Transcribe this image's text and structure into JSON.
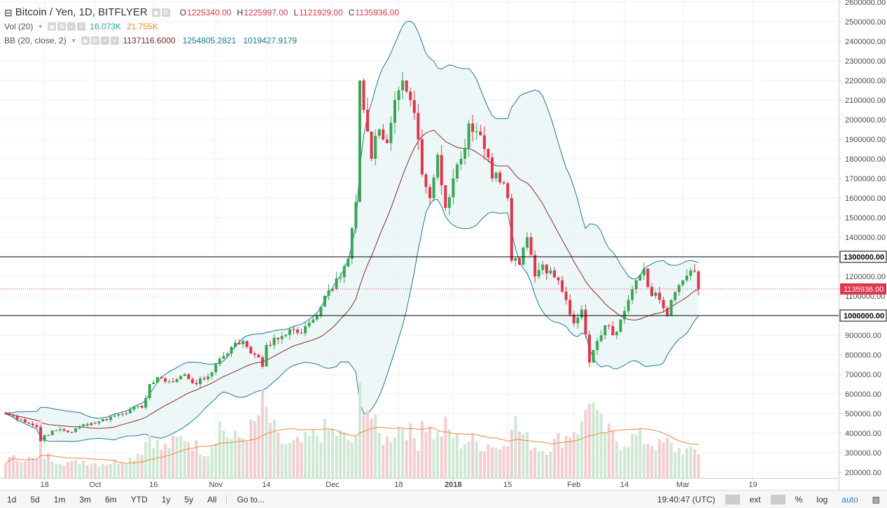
{
  "legend": {
    "symbol": "Bitcoin / Yen, 1D, BITFLYER",
    "ohlc": {
      "o_label": "O",
      "o": "1225340.00",
      "h_label": "H",
      "h": "1225997.00",
      "l_label": "L",
      "l": "1121929.00",
      "c_label": "C",
      "c": "1135936.00"
    },
    "vol_label": "Vol (20)",
    "vol_value": "16.073K",
    "vol_ma": "21.755K",
    "bb_label": "BB (20, close, 2)",
    "bb_basis": "1137116.6000",
    "bb_upper": "1254805.2821",
    "bb_lower": "1019427.9179"
  },
  "toolbar": {
    "timeframes": [
      "1d",
      "5d",
      "1m",
      "3m",
      "6m",
      "YTD",
      "1y",
      "5y",
      "All"
    ],
    "goto": "Go to...",
    "time": "19:40:47 (UTC)",
    "ext": "ext",
    "percent": "%",
    "log": "log",
    "auto": "auto"
  },
  "colors": {
    "up": "#3aa654",
    "down": "#e0364c",
    "bb_band": "#1c7d8c",
    "bb_basis": "#8b2a2a",
    "vol_ma": "#f08a35",
    "level": "#000000",
    "last_price": "#e0364c"
  },
  "chart_data": {
    "type": "candlestick",
    "price_axis": {
      "min": 200000,
      "max": 2600000,
      "step": 100000
    },
    "price_tick_labels": [
      "200000.00",
      "300000.00",
      "400000.00",
      "500000.00",
      "600000.00",
      "700000.00",
      "800000.00",
      "900000.00",
      "1000000.00",
      "1100000.00",
      "1200000.00",
      "1300000.00",
      "1400000.00",
      "1500000.00",
      "1600000.00",
      "1700000.00",
      "1800000.00",
      "1900000.00",
      "2000000.00",
      "2100000.00",
      "2200000.00",
      "2300000.00",
      "2400000.00",
      "2500000.00",
      "2600000.00"
    ],
    "x_tick_labels": [
      {
        "label": "18",
        "index": 10
      },
      {
        "label": "Oct",
        "index": 23
      },
      {
        "label": "16",
        "index": 38
      },
      {
        "label": "Nov",
        "index": 54
      },
      {
        "label": "14",
        "index": 67
      },
      {
        "label": "Dec",
        "index": 84
      },
      {
        "label": "18",
        "index": 101
      },
      {
        "label": "2018",
        "index": 115
      },
      {
        "label": "15",
        "index": 129
      },
      {
        "label": "Feb",
        "index": 146
      },
      {
        "label": "14",
        "index": 159
      },
      {
        "label": "Mar",
        "index": 174
      },
      {
        "label": "19",
        "index": 192
      }
    ],
    "bold_x_labels": [
      "2018"
    ],
    "horizontal_levels": [
      {
        "value": 1300000,
        "label": "1300000.00"
      },
      {
        "value": 1000000,
        "label": "1000000.00"
      }
    ],
    "last_price": {
      "value": 1135936,
      "label": "1135936.00"
    },
    "anchors": [
      {
        "i": 0,
        "c": 500000,
        "v": 55
      },
      {
        "i": 4,
        "c": 470000,
        "v": 65
      },
      {
        "i": 8,
        "c": 430000,
        "v": 55
      },
      {
        "i": 9,
        "c": 360000,
        "v": 155
      },
      {
        "i": 10,
        "c": 390000,
        "v": 70
      },
      {
        "i": 14,
        "c": 420000,
        "v": 55
      },
      {
        "i": 17,
        "c": 405000,
        "v": 45
      },
      {
        "i": 20,
        "c": 445000,
        "v": 55
      },
      {
        "i": 24,
        "c": 460000,
        "v": 45
      },
      {
        "i": 28,
        "c": 490000,
        "v": 50
      },
      {
        "i": 32,
        "c": 520000,
        "v": 60
      },
      {
        "i": 35,
        "c": 530000,
        "v": 90
      },
      {
        "i": 37,
        "c": 650000,
        "v": 140
      },
      {
        "i": 40,
        "c": 680000,
        "v": 90
      },
      {
        "i": 43,
        "c": 660000,
        "v": 110
      },
      {
        "i": 46,
        "c": 700000,
        "v": 130
      },
      {
        "i": 49,
        "c": 650000,
        "v": 100
      },
      {
        "i": 52,
        "c": 690000,
        "v": 80
      },
      {
        "i": 55,
        "c": 780000,
        "v": 170
      },
      {
        "i": 58,
        "c": 840000,
        "v": 120
      },
      {
        "i": 61,
        "c": 870000,
        "v": 130
      },
      {
        "i": 64,
        "c": 800000,
        "v": 165
      },
      {
        "i": 66,
        "c": 740000,
        "v": 230
      },
      {
        "i": 67,
        "c": 850000,
        "v": 205
      },
      {
        "i": 70,
        "c": 880000,
        "v": 120
      },
      {
        "i": 73,
        "c": 930000,
        "v": 100
      },
      {
        "i": 76,
        "c": 910000,
        "v": 110
      },
      {
        "i": 79,
        "c": 980000,
        "v": 130
      },
      {
        "i": 82,
        "c": 1100000,
        "v": 150
      },
      {
        "i": 85,
        "c": 1190000,
        "v": 140
      },
      {
        "i": 88,
        "c": 1290000,
        "v": 120
      },
      {
        "i": 90,
        "c": 1580000,
        "v": 110
      },
      {
        "i": 91,
        "c": 2200000,
        "v": 270
      },
      {
        "i": 92,
        "c": 2050000,
        "v": 260
      },
      {
        "i": 94,
        "c": 1800000,
        "v": 190
      },
      {
        "i": 96,
        "c": 1950000,
        "v": 130
      },
      {
        "i": 98,
        "c": 1880000,
        "v": 120
      },
      {
        "i": 100,
        "c": 2100000,
        "v": 150
      },
      {
        "i": 102,
        "c": 2200000,
        "v": 170
      },
      {
        "i": 104,
        "c": 2100000,
        "v": 140
      },
      {
        "i": 106,
        "c": 1900000,
        "v": 110
      },
      {
        "i": 107,
        "c": 1720000,
        "v": 190
      },
      {
        "i": 109,
        "c": 1600000,
        "v": 150
      },
      {
        "i": 111,
        "c": 1820000,
        "v": 130
      },
      {
        "i": 113,
        "c": 1550000,
        "v": 160
      },
      {
        "i": 115,
        "c": 1700000,
        "v": 130
      },
      {
        "i": 117,
        "c": 1800000,
        "v": 110
      },
      {
        "i": 119,
        "c": 1980000,
        "v": 120
      },
      {
        "i": 121,
        "c": 1940000,
        "v": 110
      },
      {
        "i": 123,
        "c": 1850000,
        "v": 100
      },
      {
        "i": 125,
        "c": 1700000,
        "v": 110
      },
      {
        "i": 127,
        "c": 1680000,
        "v": 90
      },
      {
        "i": 129,
        "c": 1600000,
        "v": 130
      },
      {
        "i": 130,
        "c": 1280000,
        "v": 195
      },
      {
        "i": 132,
        "c": 1260000,
        "v": 150
      },
      {
        "i": 134,
        "c": 1400000,
        "v": 120
      },
      {
        "i": 136,
        "c": 1200000,
        "v": 100
      },
      {
        "i": 138,
        "c": 1260000,
        "v": 90
      },
      {
        "i": 140,
        "c": 1230000,
        "v": 100
      },
      {
        "i": 142,
        "c": 1180000,
        "v": 120
      },
      {
        "i": 144,
        "c": 1080000,
        "v": 130
      },
      {
        "i": 146,
        "c": 960000,
        "v": 155
      },
      {
        "i": 148,
        "c": 1030000,
        "v": 160
      },
      {
        "i": 150,
        "c": 760000,
        "v": 270
      },
      {
        "i": 152,
        "c": 870000,
        "v": 180
      },
      {
        "i": 154,
        "c": 950000,
        "v": 150
      },
      {
        "i": 156,
        "c": 900000,
        "v": 130
      },
      {
        "i": 158,
        "c": 980000,
        "v": 110
      },
      {
        "i": 160,
        "c": 1080000,
        "v": 120
      },
      {
        "i": 162,
        "c": 1180000,
        "v": 130
      },
      {
        "i": 164,
        "c": 1240000,
        "v": 120
      },
      {
        "i": 166,
        "c": 1100000,
        "v": 110
      },
      {
        "i": 168,
        "c": 1080000,
        "v": 100
      },
      {
        "i": 170,
        "c": 1000000,
        "v": 110
      },
      {
        "i": 172,
        "c": 1120000,
        "v": 90
      },
      {
        "i": 174,
        "c": 1180000,
        "v": 90
      },
      {
        "i": 176,
        "c": 1230000,
        "v": 80
      },
      {
        "i": 177,
        "c": 1225340,
        "v": 85
      },
      {
        "i": 178,
        "c": 1135936,
        "v": 80
      }
    ],
    "volume_axis_max": 330,
    "bb_period": 20,
    "bb_mult": 2,
    "vol_ma_period": 20
  }
}
